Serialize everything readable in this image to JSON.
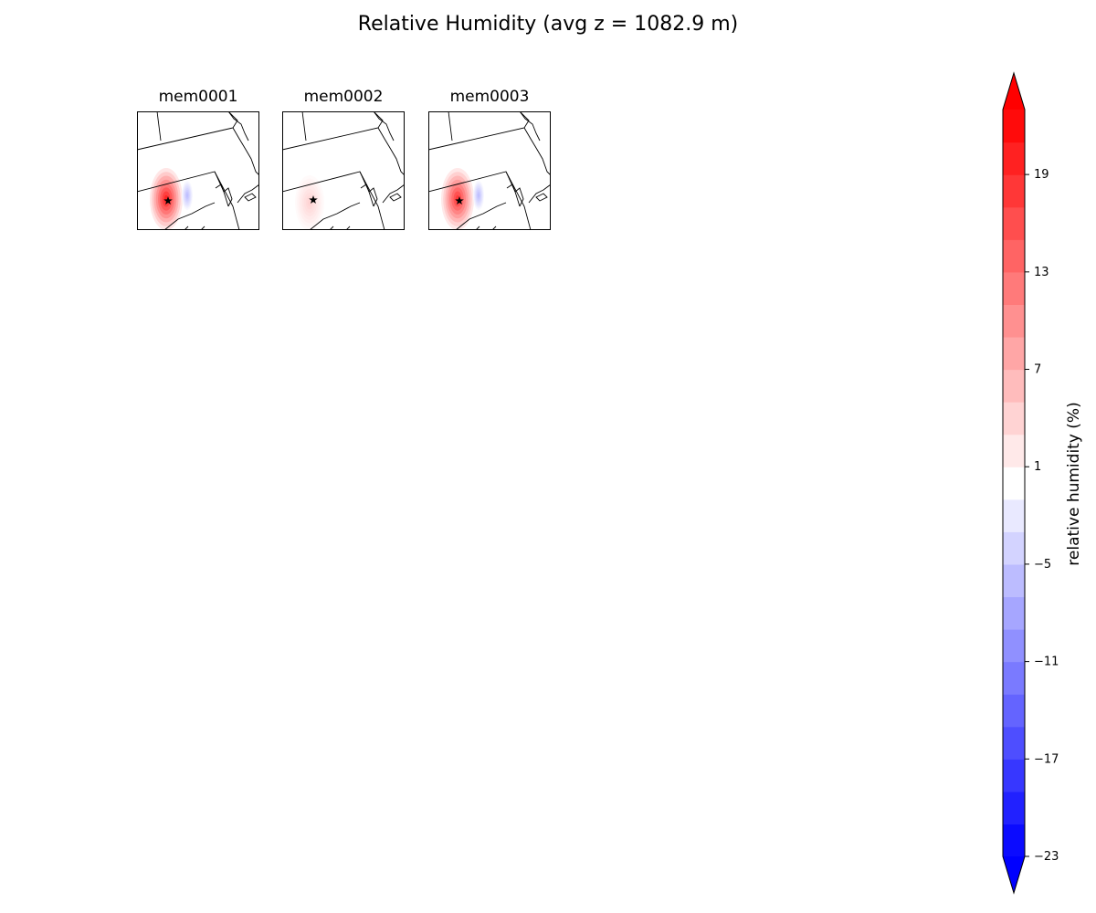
{
  "title": "Relative Humidity (avg z = 1082.9 m)",
  "chart_data": {
    "type": "heatmap",
    "title": "Relative Humidity (avg z = 1082.9 m)",
    "panels": [
      {
        "name": "mem0001",
        "blobs": [
          {
            "cx": 32,
            "cy": 96,
            "rx": 18,
            "ry": 34,
            "value": 20
          },
          {
            "cx": 55,
            "cy": 92,
            "rx": 6,
            "ry": 16,
            "value": -6
          }
        ],
        "star": {
          "x": 34,
          "y": 98
        }
      },
      {
        "name": "mem0002",
        "blobs": [
          {
            "cx": 30,
            "cy": 100,
            "rx": 16,
            "ry": 30,
            "value": 4
          }
        ],
        "star": {
          "x": 34,
          "y": 97
        }
      },
      {
        "name": "mem0003",
        "blobs": [
          {
            "cx": 32,
            "cy": 96,
            "rx": 18,
            "ry": 34,
            "value": 18
          },
          {
            "cx": 55,
            "cy": 92,
            "rx": 6,
            "ry": 16,
            "value": -6
          }
        ],
        "star": {
          "x": 34,
          "y": 98
        }
      }
    ],
    "colorbar": {
      "label": "relative humidity (%)",
      "levels": [
        -23,
        -21,
        -19,
        -17,
        -15,
        -13,
        -11,
        -9,
        -7,
        -5,
        -3,
        -1,
        1,
        3,
        5,
        7,
        9,
        11,
        13,
        15,
        17,
        19,
        21,
        23
      ],
      "ticks": [
        -23,
        -17,
        -11,
        -5,
        1,
        7,
        13,
        19
      ],
      "vmin": -23,
      "vmax": 23,
      "extend": "both",
      "cmap": "bwr",
      "negative_color": "#0000ff",
      "positive_color": "#ff0000"
    }
  }
}
